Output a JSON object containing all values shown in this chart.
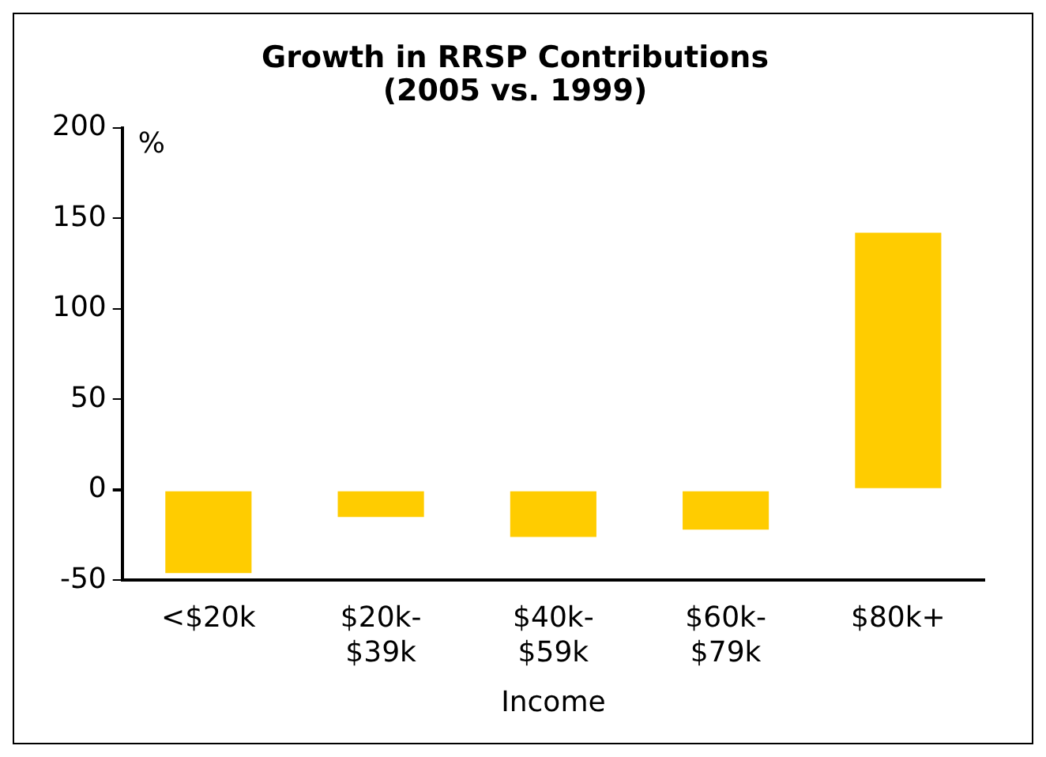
{
  "chart_data": {
    "type": "bar",
    "title": "Growth in RRSP Contributions\n(2005 vs. 1999)",
    "xlabel": "Income",
    "ylabel": "%",
    "categories": [
      "<$20k",
      "$20k-\n$39k",
      "$40k-\n$59k",
      "$60k-\n$79k",
      "$80k+"
    ],
    "values": [
      -46,
      -15,
      -26,
      -22,
      142
    ],
    "color": "#ffcc00",
    "ylim": [
      -50,
      200
    ],
    "yticks": [
      -50,
      0,
      50,
      100,
      150,
      200
    ],
    "grid": false,
    "legend": false
  }
}
